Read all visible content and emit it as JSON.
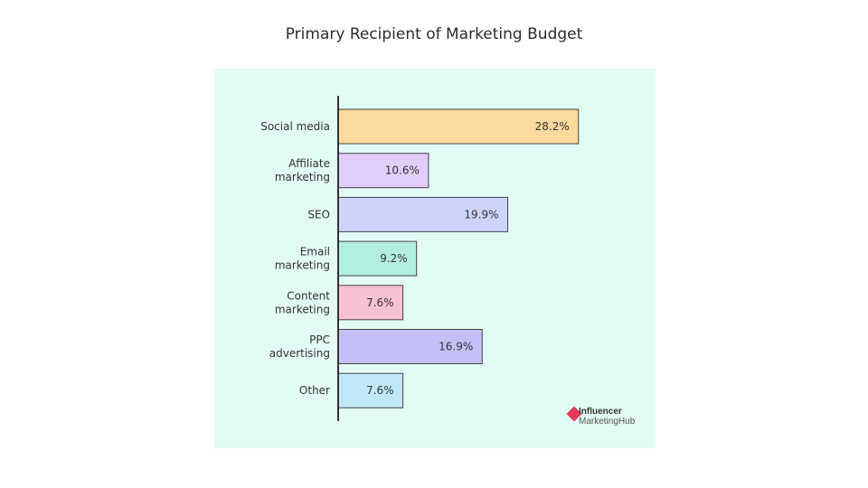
{
  "chart_data": {
    "type": "bar",
    "orientation": "horizontal",
    "title": "Primary Recipient of Marketing Budget",
    "categories": [
      "Social media",
      "Affiliate marketing",
      "SEO",
      "Email marketing",
      "Content marketing",
      "PPC advertising",
      "Other"
    ],
    "category_lines": [
      [
        "Social media"
      ],
      [
        "Affiliate",
        "marketing"
      ],
      [
        "SEO"
      ],
      [
        "Email",
        "marketing"
      ],
      [
        "Content",
        "marketing"
      ],
      [
        "PPC",
        "advertising"
      ],
      [
        "Other"
      ]
    ],
    "values": [
      28.2,
      10.6,
      19.9,
      9.2,
      7.6,
      16.9,
      7.6
    ],
    "value_labels": [
      "28.2%",
      "10.6%",
      "19.9%",
      "9.2%",
      "7.6%",
      "16.9%",
      "7.6%"
    ],
    "colors": [
      "#fcd99d",
      "#e2cdfb",
      "#cdd4fa",
      "#b3efdf",
      "#f6c1d2",
      "#c5bff8",
      "#bfe8f7"
    ],
    "xlim": [
      0,
      30
    ],
    "grid": false,
    "legend": "none",
    "background": "#e2fbf5"
  },
  "logo": {
    "line1": "Influencer",
    "line2": "MarketingHub"
  }
}
